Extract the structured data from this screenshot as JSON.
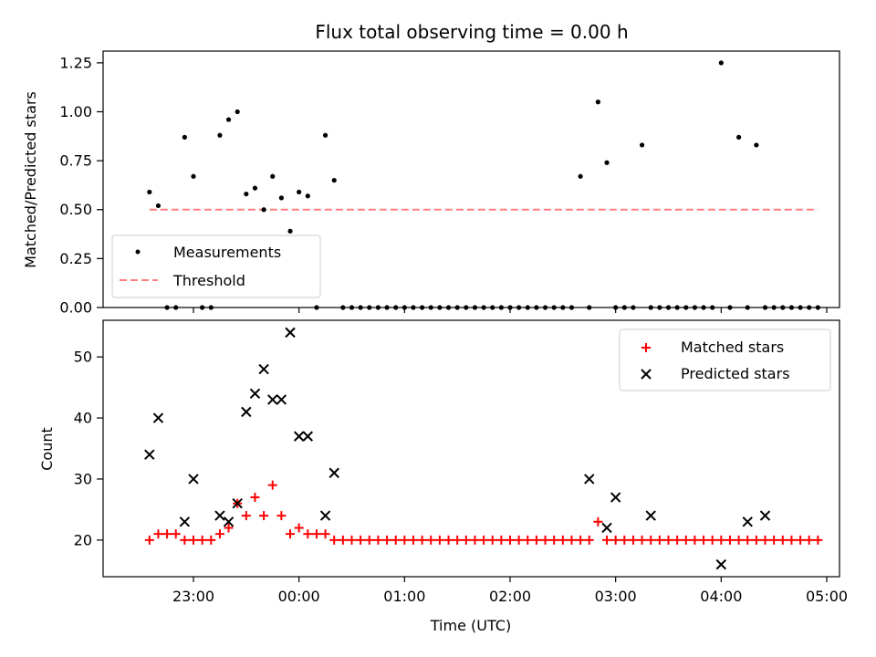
{
  "chart_data": [
    {
      "type": "scatter",
      "title": "Flux total observing time = 0.00 h",
      "ylabel": "Matched/Predicted stars",
      "xlabel": "",
      "ylim": [
        0,
        1.31
      ],
      "yticks": [
        "0.00",
        "0.25",
        "0.50",
        "0.75",
        "1.00",
        "1.25"
      ],
      "legend_position": "lower-left",
      "grid": false,
      "series": [
        {
          "name": "Measurements",
          "marker": "dot",
          "color": "#000000",
          "x": [
            "22:35",
            "22:40",
            "22:45",
            "22:50",
            "22:55",
            "23:00",
            "23:05",
            "23:10",
            "23:15",
            "23:20",
            "23:25",
            "23:30",
            "23:35",
            "23:40",
            "23:45",
            "23:50",
            "23:55",
            "00:00",
            "00:05",
            "00:10",
            "00:15",
            "00:20",
            "00:25",
            "00:30",
            "00:35",
            "00:40",
            "00:45",
            "00:50",
            "00:55",
            "01:00",
            "01:05",
            "01:10",
            "01:15",
            "01:20",
            "01:25",
            "01:30",
            "01:35",
            "01:40",
            "01:45",
            "01:50",
            "01:55",
            "02:00",
            "02:05",
            "02:10",
            "02:15",
            "02:20",
            "02:25",
            "02:30",
            "02:35",
            "02:40",
            "02:45",
            "02:50",
            "02:55",
            "03:00",
            "03:05",
            "03:10",
            "03:15",
            "03:20",
            "03:25",
            "03:30",
            "03:35",
            "03:40",
            "03:45",
            "03:50",
            "03:55",
            "04:00",
            "04:05",
            "04:10",
            "04:15",
            "04:20",
            "04:25",
            "04:30",
            "04:35",
            "04:40",
            "04:45",
            "04:50",
            "04:55"
          ],
          "y": [
            0.59,
            0.52,
            0.0,
            0.0,
            0.87,
            0.67,
            0.0,
            0.0,
            0.88,
            0.96,
            1.0,
            0.58,
            0.61,
            0.5,
            0.67,
            0.56,
            0.39,
            0.59,
            0.57,
            0.0,
            0.88,
            0.65,
            0.0,
            0.0,
            0.0,
            0.0,
            0.0,
            0.0,
            0.0,
            0.0,
            0.0,
            0.0,
            0.0,
            0.0,
            0.0,
            0.0,
            0.0,
            0.0,
            0.0,
            0.0,
            0.0,
            0.0,
            0.0,
            0.0,
            0.0,
            0.0,
            0.0,
            0.0,
            0.0,
            0.67,
            0.0,
            1.05,
            0.74,
            0.0,
            0.0,
            0.0,
            0.83,
            0.0,
            0.0,
            0.0,
            0.0,
            0.0,
            0.0,
            0.0,
            0.0,
            1.25,
            0.0,
            0.87,
            0.0,
            0.83,
            0.0,
            0.0,
            0.0,
            0.0,
            0.0,
            0.0,
            0.0
          ]
        },
        {
          "name": "Threshold",
          "marker": "dashed-line",
          "color": "#ff7f7f",
          "x": [
            "22:35",
            "04:55"
          ],
          "y": [
            0.5,
            0.5
          ]
        }
      ]
    },
    {
      "type": "scatter",
      "title": "",
      "xlabel": "Time (UTC)",
      "ylabel": "Count",
      "ylim": [
        14,
        56
      ],
      "yticks": [
        "20",
        "30",
        "40",
        "50"
      ],
      "xticks": [
        "23:00",
        "00:00",
        "01:00",
        "02:00",
        "03:00",
        "04:00",
        "05:00"
      ],
      "legend_position": "upper-right",
      "grid": false,
      "series": [
        {
          "name": "Matched stars",
          "marker": "plus",
          "color": "#ff0000",
          "x": [
            "22:35",
            "22:40",
            "22:45",
            "22:50",
            "22:55",
            "23:00",
            "23:05",
            "23:10",
            "23:15",
            "23:20",
            "23:25",
            "23:30",
            "23:35",
            "23:40",
            "23:45",
            "23:50",
            "23:55",
            "00:00",
            "00:05",
            "00:10",
            "00:15",
            "00:20",
            "00:25",
            "00:30",
            "00:35",
            "00:40",
            "00:45",
            "00:50",
            "00:55",
            "01:00",
            "01:05",
            "01:10",
            "01:15",
            "01:20",
            "01:25",
            "01:30",
            "01:35",
            "01:40",
            "01:45",
            "01:50",
            "01:55",
            "02:00",
            "02:05",
            "02:10",
            "02:15",
            "02:20",
            "02:25",
            "02:30",
            "02:35",
            "02:40",
            "02:45",
            "02:50",
            "02:55",
            "03:00",
            "03:05",
            "03:10",
            "03:15",
            "03:20",
            "03:25",
            "03:30",
            "03:35",
            "03:40",
            "03:45",
            "03:50",
            "03:55",
            "04:00",
            "04:05",
            "04:10",
            "04:15",
            "04:20",
            "04:25",
            "04:30",
            "04:35",
            "04:40",
            "04:45",
            "04:50",
            "04:55"
          ],
          "y": [
            20,
            21,
            21,
            21,
            20,
            20,
            20,
            20,
            21,
            22,
            26,
            24,
            27,
            24,
            29,
            24,
            21,
            22,
            21,
            21,
            21,
            20,
            20,
            20,
            20,
            20,
            20,
            20,
            20,
            20,
            20,
            20,
            20,
            20,
            20,
            20,
            20,
            20,
            20,
            20,
            20,
            20,
            20,
            20,
            20,
            20,
            20,
            20,
            20,
            20,
            20,
            23,
            20,
            20,
            20,
            20,
            20,
            20,
            20,
            20,
            20,
            20,
            20,
            20,
            20,
            20,
            20,
            20,
            20,
            20,
            20,
            20,
            20,
            20,
            20,
            20,
            20
          ]
        },
        {
          "name": "Predicted stars",
          "marker": "x",
          "color": "#000000",
          "x": [
            "22:35",
            "22:40",
            "22:55",
            "23:00",
            "23:15",
            "23:20",
            "23:25",
            "23:30",
            "23:35",
            "23:40",
            "23:45",
            "23:50",
            "23:55",
            "00:00",
            "00:05",
            "00:15",
            "00:20",
            "02:45",
            "02:55",
            "03:00",
            "03:20",
            "04:00",
            "04:15",
            "04:25"
          ],
          "y": [
            34,
            40,
            23,
            30,
            24,
            23,
            26,
            41,
            44,
            48,
            43,
            43,
            54,
            37,
            37,
            24,
            31,
            30,
            22,
            27,
            24,
            16,
            23,
            24
          ]
        }
      ]
    }
  ]
}
